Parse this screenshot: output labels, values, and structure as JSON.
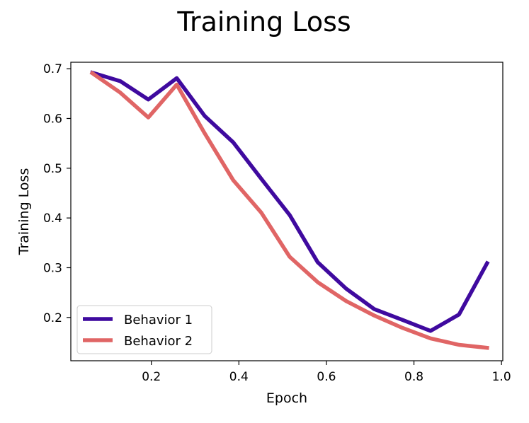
{
  "chart_data": {
    "type": "line",
    "title": "Training Loss",
    "xlabel": "Epoch",
    "ylabel": "Training Loss",
    "xlim": [
      0.016,
      1.003
    ],
    "ylim": [
      0.113,
      0.713
    ],
    "xticks": [
      0.2,
      0.4,
      0.6,
      0.8,
      1.0
    ],
    "xtick_labels": [
      "0.2",
      "0.4",
      "0.6",
      "0.8",
      "1.0"
    ],
    "yticks": [
      0.2,
      0.3,
      0.4,
      0.5,
      0.6,
      0.7
    ],
    "ytick_labels": [
      "0.2",
      "0.3",
      "0.4",
      "0.5",
      "0.6",
      "0.7"
    ],
    "grid": false,
    "legend_position": "lower-left",
    "series": [
      {
        "name": "Behavior 1",
        "color": "#3f0a9f",
        "x": [
          0.065,
          0.129,
          0.193,
          0.258,
          0.322,
          0.387,
          0.451,
          0.516,
          0.58,
          0.645,
          0.709,
          0.774,
          0.838,
          0.903,
          0.967
        ],
        "y": [
          0.692,
          0.675,
          0.638,
          0.681,
          0.605,
          0.552,
          0.479,
          0.406,
          0.311,
          0.258,
          0.217,
          0.195,
          0.173,
          0.206,
          0.309
        ]
      },
      {
        "name": "Behavior 2",
        "color": "#e06565",
        "x": [
          0.065,
          0.129,
          0.193,
          0.258,
          0.322,
          0.387,
          0.451,
          0.516,
          0.58,
          0.645,
          0.709,
          0.774,
          0.838,
          0.903,
          0.967
        ],
        "y": [
          0.691,
          0.652,
          0.602,
          0.668,
          0.57,
          0.476,
          0.411,
          0.322,
          0.271,
          0.233,
          0.204,
          0.179,
          0.158,
          0.145,
          0.139
        ]
      }
    ]
  }
}
